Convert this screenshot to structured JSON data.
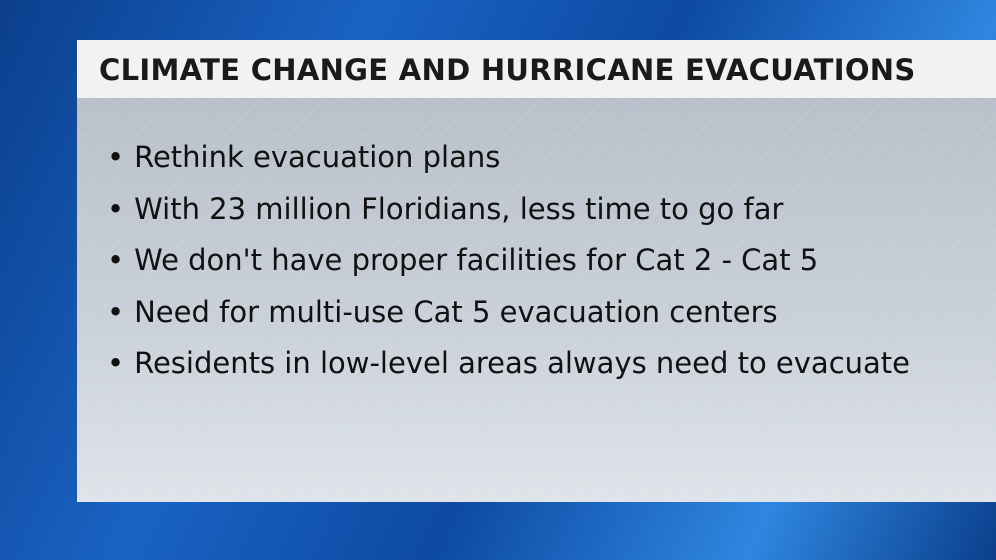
{
  "header": {
    "title": "CLIMATE CHANGE AND HURRICANE EVACUATIONS"
  },
  "bullets": [
    "Rethink evacuation plans",
    "With 23 million Floridians, less time to go far",
    "We don't have proper facilities for Cat 2 - Cat 5",
    "Need for multi-use Cat 5 evacuation centers",
    "Residents in low-level areas always need to evacuate"
  ]
}
